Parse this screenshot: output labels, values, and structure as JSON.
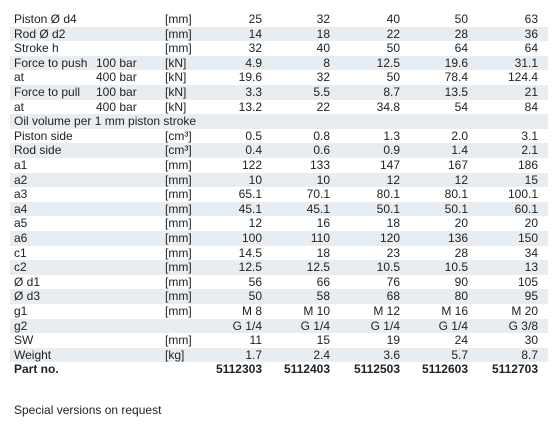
{
  "table": {
    "rows": [
      {
        "label": "Piston Ø d4",
        "unit": "[mm]",
        "values": [
          "25",
          "32",
          "40",
          "50",
          "63"
        ]
      },
      {
        "label": "Rod Ø d2",
        "unit": "[mm]",
        "values": [
          "14",
          "18",
          "22",
          "28",
          "36"
        ]
      },
      {
        "label": "Stroke h",
        "unit": "[mm]",
        "values": [
          "32",
          "40",
          "50",
          "64",
          "64"
        ]
      },
      {
        "label": "Force to push",
        "pressure": "100 bar",
        "unit": "[kN]",
        "values": [
          "4.9",
          "8",
          "12.5",
          "19.6",
          "31.1"
        ]
      },
      {
        "label": "at",
        "pressure": "400 bar",
        "unit": "[kN]",
        "values": [
          "19.6",
          "32",
          "50",
          "78.4",
          "124.4"
        ]
      },
      {
        "label": "Force to pull",
        "pressure": "100 bar",
        "unit": "[kN]",
        "values": [
          "3.3",
          "5.5",
          "8.7",
          "13.5",
          "21"
        ]
      },
      {
        "label": "at",
        "pressure": "400 bar",
        "unit": "[kN]",
        "values": [
          "13.2",
          "22",
          "34.8",
          "54",
          "84"
        ]
      },
      {
        "label": "Oil volume per 1 mm piston stroke"
      },
      {
        "label": "Piston side",
        "unit": "[cm³]",
        "values": [
          "0.5",
          "0.8",
          "1.3",
          "2.0",
          "3.1"
        ]
      },
      {
        "label": "Rod side",
        "unit": "[cm³]",
        "values": [
          "0.4",
          "0.6",
          "0.9",
          "1.4",
          "2.1"
        ]
      },
      {
        "label": "a1",
        "unit": "[mm]",
        "values": [
          "122",
          "133",
          "147",
          "167",
          "186"
        ]
      },
      {
        "label": "a2",
        "unit": "[mm]",
        "values": [
          "10",
          "10",
          "12",
          "12",
          "15"
        ]
      },
      {
        "label": "a3",
        "unit": "[mm]",
        "values": [
          "65.1",
          "70.1",
          "80.1",
          "80.1",
          "100.1"
        ]
      },
      {
        "label": "a4",
        "unit": "[mm]",
        "values": [
          "45.1",
          "45.1",
          "50.1",
          "50.1",
          "60.1"
        ]
      },
      {
        "label": "a5",
        "unit": "[mm]",
        "values": [
          "12",
          "16",
          "18",
          "20",
          "20"
        ]
      },
      {
        "label": "a6",
        "unit": "[mm]",
        "values": [
          "100",
          "110",
          "120",
          "136",
          "150"
        ]
      },
      {
        "label": "c1",
        "unit": "[mm]",
        "values": [
          "14.5",
          "18",
          "23",
          "28",
          "34"
        ]
      },
      {
        "label": "c2",
        "unit": "[mm]",
        "values": [
          "12.5",
          "12.5",
          "10.5",
          "10.5",
          "13"
        ]
      },
      {
        "label": "Ø d1",
        "unit": "[mm]",
        "values": [
          "56",
          "66",
          "76",
          "90",
          "105"
        ]
      },
      {
        "label": "Ø d3",
        "unit": "[mm]",
        "values": [
          "50",
          "58",
          "68",
          "80",
          "95"
        ]
      },
      {
        "label": "g1",
        "unit": "[mm]",
        "values": [
          "M 8",
          "M 10",
          "M 12",
          "M 16",
          "M 20"
        ]
      },
      {
        "label": "g2",
        "values": [
          "G 1/4",
          "G 1/4",
          "G 1/4",
          "G 1/4",
          "G 3/8"
        ]
      },
      {
        "label": "SW",
        "unit": "[mm]",
        "values": [
          "11",
          "15",
          "19",
          "24",
          "30"
        ]
      },
      {
        "label": "Weight",
        "unit": "[kg]",
        "values": [
          "1.7",
          "2.4",
          "3.6",
          "5.7",
          "8.7"
        ]
      },
      {
        "label": "Part no.",
        "values": [
          "5112303",
          "5112403",
          "5112503",
          "5112603",
          "5112703"
        ]
      }
    ],
    "note": "Special versions on request"
  }
}
